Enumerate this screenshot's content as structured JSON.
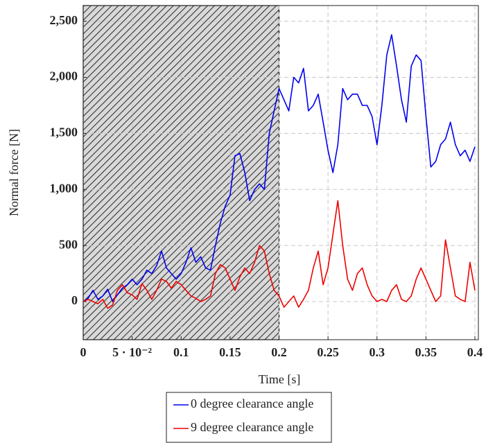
{
  "chart_data": {
    "type": "line",
    "x_label": "Time [s]",
    "y_label": "Normal force [N]",
    "x": [
      0,
      0.005,
      0.01,
      0.015,
      0.02,
      0.025,
      0.03,
      0.035,
      0.04,
      0.045,
      0.05,
      0.055,
      0.06,
      0.065,
      0.07,
      0.075,
      0.08,
      0.085,
      0.09,
      0.095,
      0.1,
      0.105,
      0.11,
      0.115,
      0.12,
      0.125,
      0.13,
      0.135,
      0.14,
      0.145,
      0.15,
      0.155,
      0.16,
      0.165,
      0.17,
      0.175,
      0.18,
      0.185,
      0.19,
      0.195,
      0.2,
      0.205,
      0.21,
      0.215,
      0.22,
      0.225,
      0.23,
      0.235,
      0.24,
      0.245,
      0.25,
      0.255,
      0.26,
      0.265,
      0.27,
      0.275,
      0.28,
      0.285,
      0.29,
      0.295,
      0.3,
      0.305,
      0.31,
      0.315,
      0.32,
      0.325,
      0.33,
      0.335,
      0.34,
      0.345,
      0.35,
      0.355,
      0.36,
      0.365,
      0.37,
      0.375,
      0.38,
      0.385,
      0.39,
      0.395,
      0.4
    ],
    "series": [
      {
        "name": "0 degree clearance angle",
        "color": "#0000ee",
        "values": [
          0,
          30,
          100,
          20,
          50,
          110,
          0,
          60,
          120,
          150,
          200,
          150,
          200,
          280,
          250,
          320,
          450,
          300,
          250,
          200,
          250,
          350,
          480,
          350,
          400,
          300,
          280,
          500,
          700,
          850,
          950,
          1300,
          1320,
          1150,
          900,
          1000,
          1050,
          1000,
          1500,
          1700,
          1900,
          1800,
          1700,
          2000,
          1950,
          2080,
          1700,
          1750,
          1850,
          1600,
          1350,
          1150,
          1400,
          1900,
          1800,
          1850,
          1850,
          1750,
          1750,
          1650,
          1400,
          1750,
          2200,
          2380,
          2100,
          1800,
          1600,
          2100,
          2200,
          2150,
          1650,
          1200,
          1250,
          1400,
          1450,
          1600,
          1400,
          1300,
          1350,
          1250,
          1380
        ]
      },
      {
        "name": "9 degree clearance angle",
        "color": "#ee0000",
        "values": [
          0,
          20,
          0,
          -20,
          20,
          -60,
          -30,
          100,
          150,
          80,
          60,
          20,
          160,
          100,
          20,
          100,
          200,
          180,
          120,
          180,
          150,
          100,
          50,
          30,
          0,
          20,
          50,
          250,
          330,
          300,
          200,
          100,
          220,
          300,
          250,
          350,
          500,
          450,
          250,
          100,
          50,
          -50,
          0,
          50,
          -50,
          20,
          100,
          300,
          450,
          150,
          300,
          600,
          900,
          500,
          200,
          100,
          250,
          300,
          150,
          50,
          0,
          20,
          0,
          100,
          150,
          20,
          0,
          50,
          200,
          300,
          200,
          100,
          0,
          50,
          550,
          300,
          50,
          20,
          0,
          350,
          100
        ]
      }
    ],
    "xlim": [
      0,
      0.4
    ],
    "ylim": [
      -340,
      2640
    ],
    "xticks": [
      0,
      {
        "value": 0.05,
        "label": "5 · 10⁻²"
      },
      0.1,
      0.15,
      0.2,
      0.25,
      0.3,
      0.35,
      0.4
    ],
    "yticks": [
      0,
      500,
      {
        "value": 1000,
        "label": "1,000"
      },
      {
        "value": 1500,
        "label": "1,500"
      },
      {
        "value": 2000,
        "label": "2,000"
      },
      {
        "value": 2500,
        "label": "2,500"
      }
    ],
    "grid": true,
    "shaded_xrange": [
      0,
      0.2
    ],
    "legend": "bottom"
  }
}
